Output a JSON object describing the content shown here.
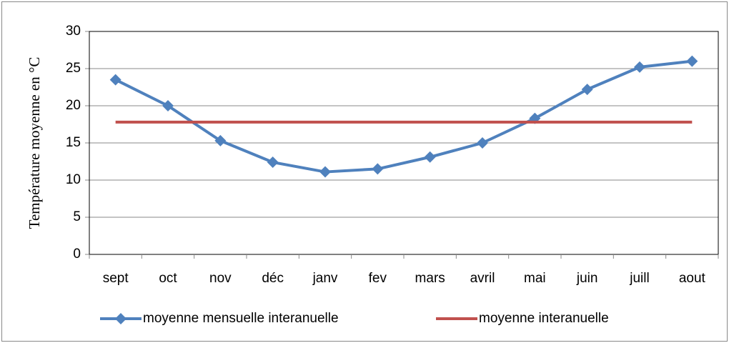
{
  "chart_data": {
    "type": "line",
    "y_label": "Température moyenne en °C",
    "categories": [
      "sept",
      "oct",
      "nov",
      "déc",
      "janv",
      "fev",
      "mars",
      "avril",
      "mai",
      "juin",
      "juill",
      "aout"
    ],
    "series": [
      {
        "name": "moyenne mensuelle interanuelle",
        "color": "#4f81bd",
        "marker": "diamond",
        "values": [
          23.5,
          20,
          15.3,
          12.4,
          11.1,
          11.5,
          13.1,
          15,
          18.3,
          22.2,
          25.2,
          26
        ]
      },
      {
        "name": "moyenne interanuelle",
        "color": "#c0504d",
        "values": [
          17.8,
          17.8,
          17.8,
          17.8,
          17.8,
          17.8,
          17.8,
          17.8,
          17.8,
          17.8,
          17.8,
          17.8
        ]
      }
    ],
    "ylim": [
      0,
      30
    ],
    "yticks": [
      0,
      5,
      10,
      15,
      20,
      25,
      30
    ],
    "grid": true,
    "legend": "bottom"
  }
}
